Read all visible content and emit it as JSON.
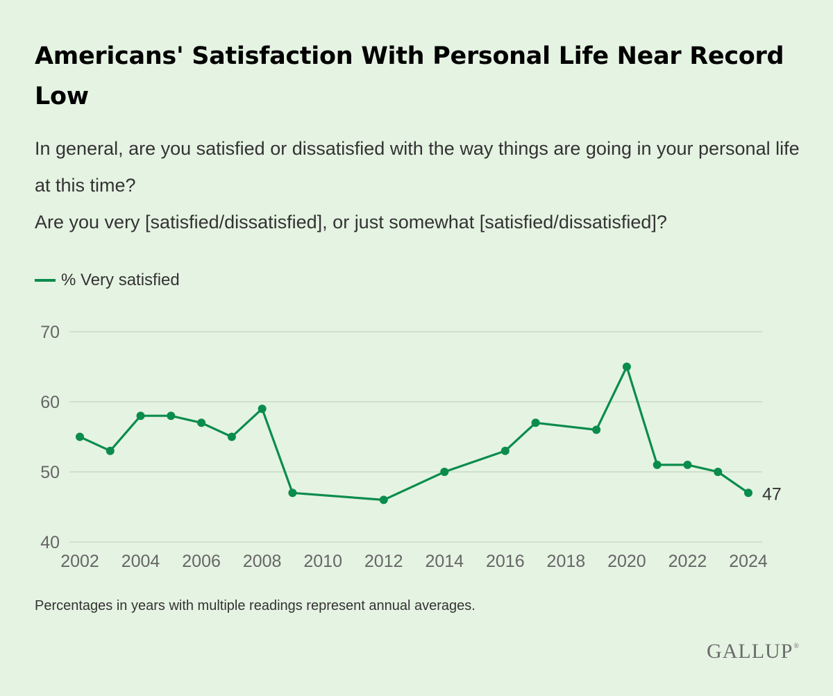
{
  "title": "Americans' Satisfaction With Personal Life Near Record Low",
  "question": {
    "line1": "In general, are you satisfied or dissatisfied with the way things are going in your personal life at this time?",
    "line2": "Are you very [satisfied/dissatisfied], or just somewhat [satisfied/dissatisfied]?"
  },
  "footnote": "Percentages in years with multiple readings represent annual averages.",
  "logo": {
    "text": "GALLUP",
    "mark": "®"
  },
  "chart_data": {
    "type": "line",
    "title": "",
    "xlabel": "",
    "ylabel": "",
    "xlim": [
      2002,
      2024
    ],
    "ylim": [
      40,
      70
    ],
    "x_ticks": [
      2002,
      2004,
      2006,
      2008,
      2010,
      2012,
      2014,
      2016,
      2018,
      2020,
      2022,
      2024
    ],
    "y_ticks": [
      40,
      50,
      60,
      70
    ],
    "grid": true,
    "legend_position": "top-left",
    "series": [
      {
        "name": "% Very satisfied",
        "color": "#0a8c4c",
        "x": [
          2002,
          2003,
          2004,
          2005,
          2006,
          2007,
          2008,
          2009,
          2012,
          2014,
          2016,
          2017,
          2019,
          2020,
          2021,
          2022,
          2023,
          2024
        ],
        "values": [
          55,
          53,
          58,
          58,
          57,
          55,
          59,
          47,
          46,
          50,
          53,
          57,
          56,
          65,
          51,
          51,
          50,
          47
        ]
      }
    ],
    "annotations": [
      {
        "x": 2024,
        "y": 47,
        "text": "47"
      }
    ],
    "colors": {
      "grid": "#c7d9c4",
      "tick_text": "#666666",
      "annotation_text": "#333333"
    }
  }
}
